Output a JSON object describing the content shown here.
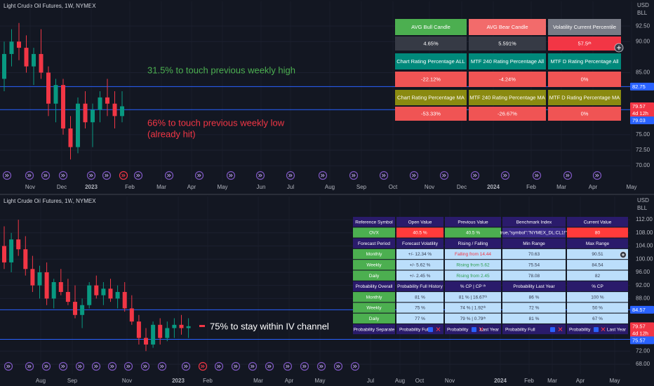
{
  "top_chart": {
    "title": "Light Crude Oil Futures, 1W, NYMEX",
    "currency": "USD",
    "unit": "BLL",
    "ylim": [
      67.3,
      96.7
    ],
    "yticks": [
      {
        "value": 92.5,
        "label": "92.50"
      },
      {
        "value": 90,
        "label": "90.00"
      },
      {
        "value": 85,
        "label": "85.00"
      },
      {
        "value": 75,
        "label": "75.00"
      },
      {
        "value": 72.5,
        "label": "72.50"
      },
      {
        "value": 70,
        "label": "70.00"
      }
    ],
    "xticks": [
      "Nov",
      "Dec",
      "2023",
      "Feb",
      "Mar",
      "Apr",
      "May",
      "Jun",
      "Jul",
      "Aug",
      "Sep",
      "Oct",
      "Nov",
      "Dec",
      "2024",
      "Feb",
      "Mar",
      "Apr",
      "May"
    ],
    "candles": [
      [
        84,
        90,
        82,
        88
      ],
      [
        88,
        92,
        86,
        90
      ],
      [
        90,
        93,
        87,
        89
      ],
      [
        89,
        91,
        85,
        86
      ],
      [
        86,
        89,
        83,
        88
      ],
      [
        88,
        92,
        84,
        85
      ],
      [
        85,
        86,
        78,
        80
      ],
      [
        80,
        84,
        77,
        83
      ],
      [
        83,
        84,
        75,
        76
      ],
      [
        76,
        78,
        71,
        73
      ],
      [
        73,
        81,
        72,
        80
      ],
      [
        80,
        82,
        76,
        77
      ],
      [
        77,
        80,
        73,
        79
      ],
      [
        79,
        82,
        77,
        81
      ],
      [
        81,
        84,
        78,
        80
      ],
      [
        80,
        82,
        76,
        78
      ],
      [
        78,
        82,
        77,
        79.57
      ]
    ],
    "levels": [
      82.75,
      79.03
    ],
    "last_price": 79.57,
    "countdown": "4d 12h",
    "annotations": [
      {
        "text": "31.5% to touch previous weekly high",
        "color": "#4caf50"
      },
      {
        "text": "66% to touch previous weekly low",
        "color": "#f23645"
      },
      {
        "text": "(already hit)",
        "color": "#f23645"
      }
    ],
    "table": {
      "rows": [
        [
          "AVG Bull Candle",
          "AVG Bear Candle",
          "Volatility Current Percentile"
        ],
        [
          "4.65%",
          "5.591%",
          "57.5ᵗʰ"
        ],
        [
          "Chart Rating Percentage ALL",
          "MTF 240 Rating Percentage All",
          "MTF D Rating Percentage All"
        ],
        [
          "-22.12%",
          "-4.24%",
          "0%"
        ],
        [
          "Chart Rating Percentage MA",
          "MTF 240 Rating Percentage MA",
          "MTF D Rating Percentage MA"
        ],
        [
          "-53.33%",
          "-26.67%",
          "0%"
        ]
      ]
    }
  },
  "bottom_chart": {
    "title": "Light Crude Oil Futures, 1W, NYMEX",
    "currency": "USD",
    "unit": "BLL",
    "ylim": [
      65,
      119.5
    ],
    "yticks": [
      {
        "value": 112,
        "label": "112.00"
      },
      {
        "value": 108,
        "label": "108.00"
      },
      {
        "value": 104,
        "label": "104.00"
      },
      {
        "value": 100,
        "label": "100.00"
      },
      {
        "value": 96,
        "label": "96.00"
      },
      {
        "value": 92,
        "label": "92.00"
      },
      {
        "value": 88,
        "label": "88.00"
      },
      {
        "value": 72,
        "label": "72.00"
      },
      {
        "value": 68,
        "label": "68.00"
      }
    ],
    "xticks": [
      "Aug",
      "Sep",
      "Nov",
      "2023",
      "Feb",
      "Mar",
      "Apr",
      "May",
      "Jul",
      "Aug",
      "Oct",
      "Nov",
      "2024",
      "Feb",
      "Mar",
      "Apr",
      "May"
    ],
    "candles": [
      [
        104,
        110,
        97,
        99
      ],
      [
        99,
        108,
        96,
        106
      ],
      [
        106,
        112,
        101,
        103
      ],
      [
        103,
        107,
        95,
        97
      ],
      [
        97,
        101,
        90,
        92
      ],
      [
        92,
        98,
        88,
        96
      ],
      [
        96,
        99,
        86,
        88
      ],
      [
        88,
        94,
        85,
        93
      ],
      [
        93,
        97,
        89,
        90
      ],
      [
        90,
        94,
        86,
        87
      ],
      [
        87,
        92,
        82,
        83
      ],
      [
        83,
        88,
        79,
        86
      ],
      [
        86,
        93,
        85,
        92
      ],
      [
        92,
        95,
        88,
        89
      ],
      [
        89,
        93,
        86,
        91
      ],
      [
        91,
        94,
        87,
        88
      ],
      [
        88,
        92,
        85,
        90
      ],
      [
        90,
        93,
        84,
        85
      ],
      [
        85,
        89,
        80,
        81
      ],
      [
        81,
        83,
        74,
        76
      ],
      [
        76,
        79,
        72,
        74
      ],
      [
        74,
        81,
        73,
        80
      ],
      [
        80,
        82,
        74,
        76
      ],
      [
        76,
        81,
        75,
        79
      ],
      [
        79,
        82,
        76,
        80
      ],
      [
        80,
        83,
        77,
        79
      ],
      [
        79,
        82,
        76,
        79.57
      ]
    ],
    "levels": [
      84.57,
      75.57
    ],
    "last_price": 79.57,
    "countdown": "4d 12h",
    "annotations": [
      {
        "text": "75% to stay within IV channel",
        "color": "#ffffff"
      }
    ],
    "table": {
      "rows": [
        [
          "Reference Symbol",
          "Open Value",
          "Previous Value",
          "Benchmark Index",
          "Current Value"
        ],
        [
          "OVX",
          "40.5 %",
          "40.5 %",
          "true,\"symbol\":\"NYMEX_DL:CL1!\"]",
          "80"
        ],
        [
          "Forecast Period",
          "Forecast Volatility",
          "Rising / Falling",
          "Min Range",
          "Max Range"
        ],
        [
          "Monthly",
          "+/- 12.34 %",
          "Falling from 14.44",
          "70.63",
          "90.51"
        ],
        [
          "Weekly",
          "+/- 5.62 %",
          "Rising from 5.62",
          "75.54",
          "84.54"
        ],
        [
          "Daily",
          "+/- 2.45 %",
          "Rising from 2.45",
          "78.08",
          "82"
        ],
        [
          "Probability Overall",
          "Probability Full History",
          "% CP  |  CP ᵗʰ",
          "Probability Last Year",
          "% CP"
        ],
        [
          "Monthly",
          "81 %",
          "81 %  |  16.67ᵗʰ",
          "86 %",
          "100 %"
        ],
        [
          "Weekly",
          "75 %",
          "74 %  |  1.92ᵗʰ",
          "72 %",
          "50 %"
        ],
        [
          "Daily",
          "77 %",
          "79 %  |  0.79ᵗʰ",
          "81 %",
          "67 %"
        ],
        [
          "Probability Separate",
          [
            "Probability Full"
          ],
          [
            "Probability",
            "Last Year"
          ],
          [
            "Probability Full"
          ],
          [
            "Probability",
            "Last Year"
          ]
        ]
      ]
    }
  }
}
